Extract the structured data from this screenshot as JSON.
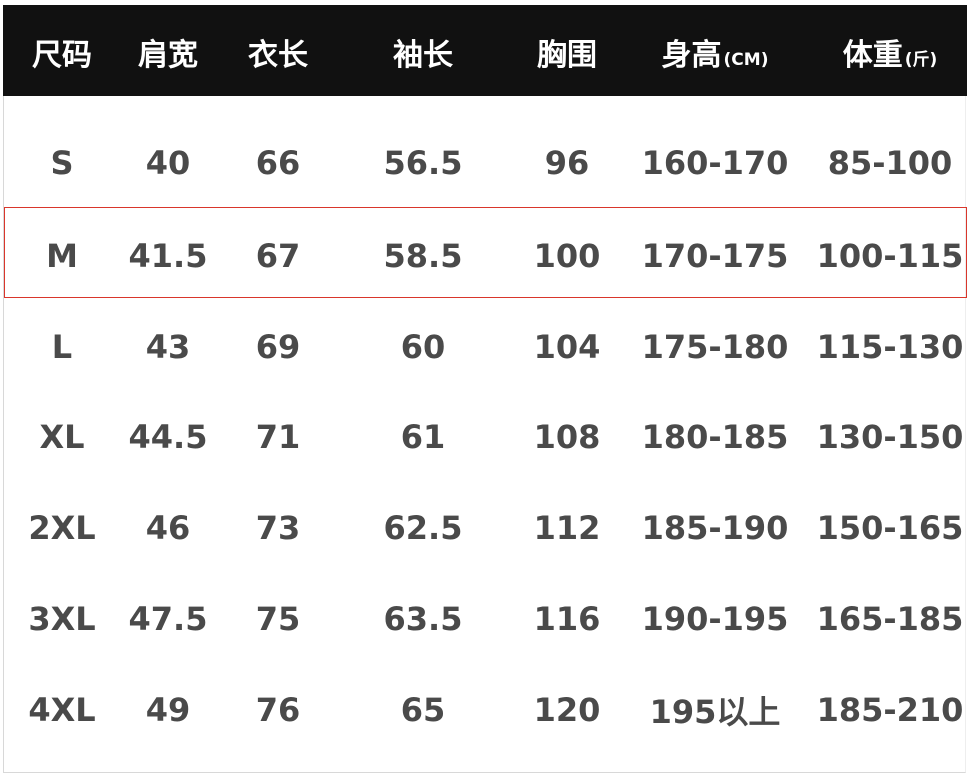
{
  "table": {
    "columns": [
      {
        "label": "尺码"
      },
      {
        "label": "肩宽"
      },
      {
        "label": "衣长"
      },
      {
        "label": "袖长"
      },
      {
        "label": "胸围"
      },
      {
        "label": "身高",
        "unit": "(CM)"
      },
      {
        "label": "体重",
        "unit": "(斤)"
      }
    ],
    "rows": [
      [
        "S",
        "40",
        "66",
        "56.5",
        "96",
        "160-170",
        "85-100"
      ],
      [
        "M",
        "41.5",
        "67",
        "58.5",
        "100",
        "170-175",
        "100-115"
      ],
      [
        "L",
        "43",
        "69",
        "60",
        "104",
        "175-180",
        "115-130"
      ],
      [
        "XL",
        "44.5",
        "71",
        "61",
        "108",
        "180-185",
        "130-150"
      ],
      [
        "2XL",
        "46",
        "73",
        "62.5",
        "112",
        "185-190",
        "150-165"
      ],
      [
        "3XL",
        "47.5",
        "75",
        "63.5",
        "116",
        "190-195",
        "165-185"
      ],
      [
        "4XL",
        "49",
        "76",
        "65",
        "120",
        "195以上",
        "185-210"
      ]
    ]
  }
}
